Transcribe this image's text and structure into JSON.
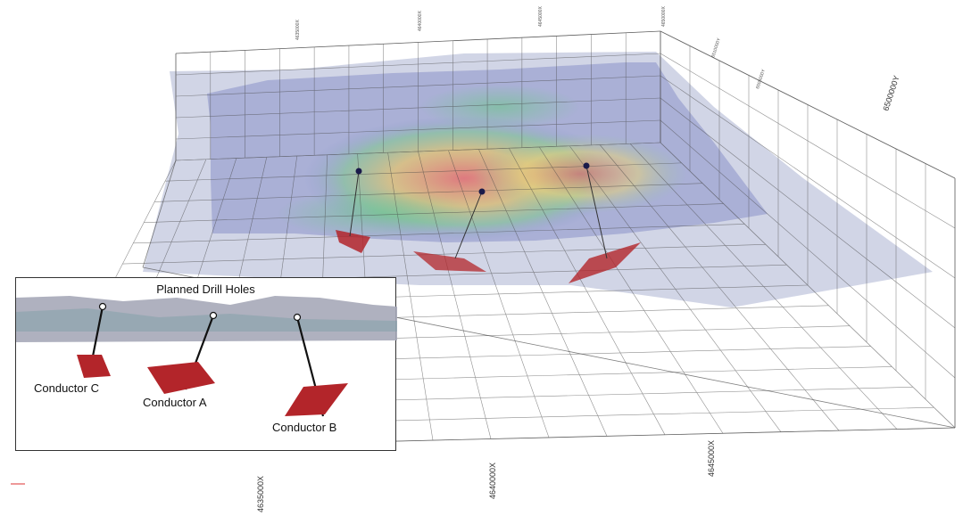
{
  "axis_labels": {
    "x_bottom": [
      "4635000X",
      "4640000X",
      "4645000X"
    ],
    "y_right": [
      "6500000Y",
      "6505000Y",
      "6510000Y"
    ],
    "top_ticks": [
      "4650000X",
      "4645000X",
      "4640000X",
      "4635000X"
    ]
  },
  "inset": {
    "title": "Planned Drill Holes",
    "conductors": [
      {
        "label": "Conductor C"
      },
      {
        "label": "Conductor A"
      },
      {
        "label": "Conductor B"
      }
    ]
  },
  "colors": {
    "conductor": "#b3252a",
    "surface": "#9aa2c8",
    "grid": "#555555",
    "collar": "#1a1a4a"
  }
}
